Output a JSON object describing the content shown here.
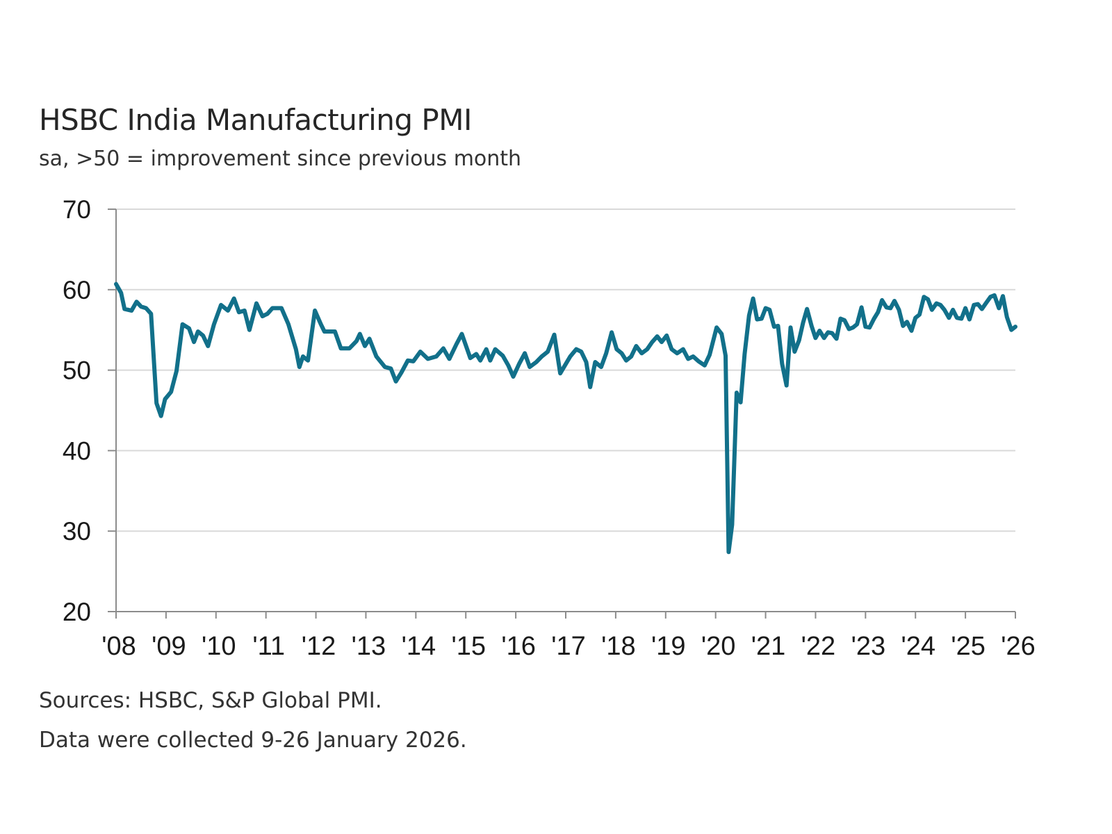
{
  "chart_data": {
    "type": "line",
    "title": "HSBC India Manufacturing PMI",
    "subtitle": "sa, >50 = improvement since previous month",
    "ylim": [
      20,
      70
    ],
    "yticks": [
      70,
      60,
      50,
      40,
      30,
      20
    ],
    "xlim": [
      2008,
      2026
    ],
    "xtick_labels": [
      "'08",
      "'09",
      "'10",
      "'11",
      "'12",
      "'13",
      "'14",
      "'15",
      "'16",
      "'17",
      "'18",
      "'19",
      "'20",
      "'21",
      "'22",
      "'23",
      "'24",
      "'25",
      "'26"
    ],
    "grid": true,
    "color": "#12708a",
    "series": [
      {
        "x": [
          2008.0,
          2008.1,
          2008.17,
          2008.31,
          2008.41,
          2008.5,
          2008.6,
          2008.7,
          2008.81,
          2008.9,
          2008.98,
          2009.1,
          2009.21,
          2009.33,
          2009.46,
          2009.56,
          2009.64,
          2009.74,
          2009.84,
          2009.96,
          2010.1,
          2010.24,
          2010.36,
          2010.46,
          2010.57,
          2010.67,
          2010.81,
          2010.93,
          2011.03,
          2011.13,
          2011.31,
          2011.45,
          2011.6,
          2011.67,
          2011.74,
          2011.84,
          2011.98,
          2012.1,
          2012.17,
          2012.38,
          2012.5,
          2012.67,
          2012.81,
          2012.88,
          2012.98,
          2013.07,
          2013.21,
          2013.38,
          2013.5,
          2013.6,
          2013.71,
          2013.84,
          2013.95,
          2014.09,
          2014.24,
          2014.41,
          2014.55,
          2014.67,
          2014.81,
          2014.92,
          2015.09,
          2015.21,
          2015.29,
          2015.41,
          2015.49,
          2015.59,
          2015.74,
          2015.85,
          2015.95,
          2016.07,
          2016.18,
          2016.28,
          2016.41,
          2016.52,
          2016.64,
          2016.72,
          2016.77,
          2016.89,
          2017.09,
          2017.21,
          2017.31,
          2017.41,
          2017.49,
          2017.59,
          2017.71,
          2017.81,
          2017.92,
          2018.02,
          2018.12,
          2018.21,
          2018.31,
          2018.41,
          2018.52,
          2018.63,
          2018.73,
          2018.83,
          2018.92,
          2019.02,
          2019.12,
          2019.23,
          2019.35,
          2019.45,
          2019.55,
          2019.66,
          2019.78,
          2019.88,
          2020.02,
          2020.12,
          2020.2,
          2020.26,
          2020.33,
          2020.42,
          2020.5,
          2020.58,
          2020.67,
          2020.75,
          2020.83,
          2020.92,
          2021.0,
          2021.08,
          2021.17,
          2021.25,
          2021.33,
          2021.42,
          2021.5,
          2021.58,
          2021.67,
          2021.75,
          2021.83,
          2021.92,
          2022.0,
          2022.08,
          2022.17,
          2022.25,
          2022.33,
          2022.42,
          2022.5,
          2022.58,
          2022.67,
          2022.75,
          2022.83,
          2022.92,
          2023.0,
          2023.08,
          2023.17,
          2023.25,
          2023.33,
          2023.42,
          2023.5,
          2023.58,
          2023.67,
          2023.75,
          2023.83,
          2023.92,
          2024.0,
          2024.08,
          2024.17,
          2024.25,
          2024.33,
          2024.42,
          2024.5,
          2024.58,
          2024.67,
          2024.75,
          2024.83,
          2024.92,
          2025.0,
          2025.08,
          2025.17,
          2025.25,
          2025.33,
          2025.42,
          2025.5,
          2025.58,
          2025.67,
          2025.75,
          2025.83,
          2025.92,
          2026.0
        ],
        "y": [
          60.7,
          59.6,
          57.6,
          57.4,
          58.5,
          57.9,
          57.7,
          57.0,
          45.9,
          44.3,
          46.4,
          47.3,
          49.9,
          55.7,
          55.2,
          53.5,
          54.8,
          54.3,
          53.0,
          55.7,
          58.1,
          57.4,
          58.9,
          57.2,
          57.4,
          55.0,
          58.3,
          56.7,
          57.0,
          57.7,
          57.7,
          55.7,
          52.6,
          50.4,
          51.7,
          51.2,
          57.4,
          55.7,
          54.8,
          54.8,
          52.7,
          52.7,
          53.6,
          54.5,
          53.0,
          53.9,
          51.7,
          50.4,
          50.2,
          48.6,
          49.7,
          51.2,
          51.1,
          52.3,
          51.4,
          51.7,
          52.7,
          51.4,
          53.2,
          54.5,
          51.5,
          52.0,
          51.2,
          52.6,
          51.2,
          52.6,
          51.8,
          50.6,
          49.2,
          50.8,
          52.1,
          50.4,
          51.0,
          51.7,
          52.3,
          53.6,
          54.4,
          49.6,
          51.7,
          52.6,
          52.3,
          51.0,
          47.9,
          51.0,
          50.4,
          52.1,
          54.7,
          52.6,
          52.1,
          51.2,
          51.7,
          53.0,
          52.1,
          52.6,
          53.5,
          54.2,
          53.5,
          54.3,
          52.6,
          52.1,
          52.6,
          51.4,
          51.7,
          51.1,
          50.6,
          51.9,
          55.3,
          54.5,
          51.8,
          27.4,
          30.8,
          47.2,
          46.0,
          52.0,
          56.8,
          58.9,
          56.3,
          56.4,
          57.7,
          57.5,
          55.4,
          55.5,
          50.8,
          48.1,
          55.3,
          52.3,
          53.7,
          55.9,
          57.6,
          55.5,
          54.0,
          54.9,
          54.0,
          54.7,
          54.6,
          53.9,
          56.4,
          56.2,
          55.1,
          55.3,
          55.7,
          57.8,
          55.4,
          55.3,
          56.4,
          57.2,
          58.7,
          57.8,
          57.7,
          58.6,
          57.5,
          55.5,
          56.0,
          54.9,
          56.5,
          56.9,
          59.1,
          58.8,
          57.5,
          58.3,
          58.1,
          57.5,
          56.5,
          57.5,
          56.5,
          56.4,
          57.7,
          56.3,
          58.1,
          58.2,
          57.6,
          58.4,
          59.1,
          59.3,
          57.7,
          59.2,
          56.6,
          55.0,
          55.4
        ]
      }
    ]
  },
  "footer": {
    "sources": "Sources: HSBC, S&P Global PMI.",
    "collected": "Data were collected 9-26 January 2026."
  }
}
